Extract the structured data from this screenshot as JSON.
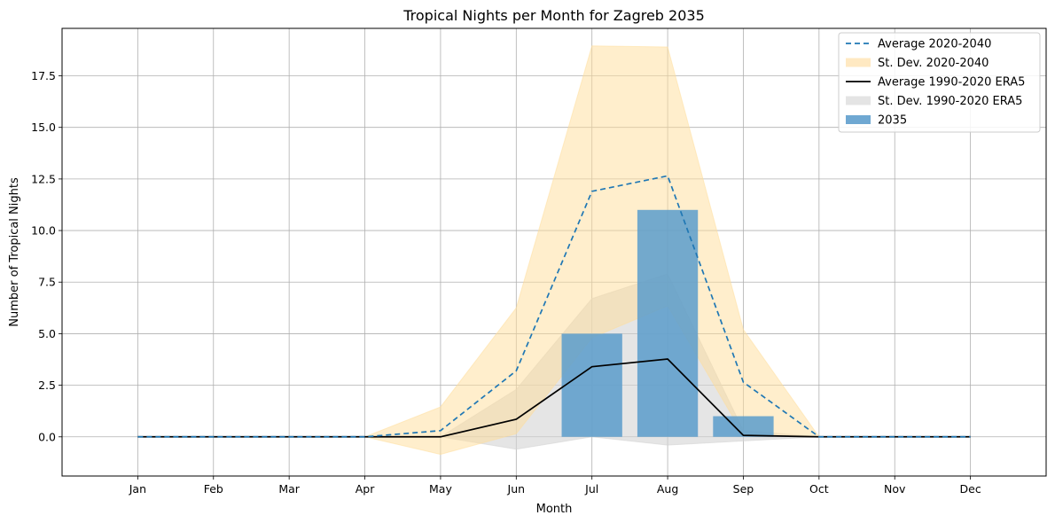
{
  "chart_data": {
    "type": "line",
    "title": "Tropical Nights per Month for Zagreb 2035",
    "xlabel": "Month",
    "ylabel": "Number of Tropical Nights",
    "categories": [
      "Jan",
      "Feb",
      "Mar",
      "Apr",
      "May",
      "Jun",
      "Jul",
      "Aug",
      "Sep",
      "Oct",
      "Nov",
      "Dec"
    ],
    "xlim": [
      -1.0,
      12.0
    ],
    "ylim": [
      -1.9,
      19.8
    ],
    "yticks": [
      0.0,
      2.5,
      5.0,
      7.5,
      10.0,
      12.5,
      15.0,
      17.5
    ],
    "ytick_labels": [
      "0.0",
      "2.5",
      "5.0",
      "7.5",
      "10.0",
      "12.5",
      "15.0",
      "17.5"
    ],
    "grid": true,
    "legend_position": "top-right",
    "series": [
      {
        "name": "St. Dev. 1990-2020 ERA5",
        "kind": "band",
        "color": "#d3d3d3",
        "opacity": 0.6,
        "lower": [
          0,
          0,
          0,
          0,
          0,
          -0.6,
          0,
          -0.4,
          -0.2,
          0,
          0,
          0
        ],
        "upper": [
          0,
          0,
          0,
          0,
          0,
          2.3,
          6.7,
          7.9,
          0.3,
          0,
          0,
          0
        ]
      },
      {
        "name": "St. Dev. 2020-2040",
        "kind": "band",
        "color": "#ffdd99",
        "opacity": 0.5,
        "lower": [
          0,
          0,
          0,
          0,
          -0.85,
          0.15,
          4.8,
          6.35,
          0.1,
          0,
          0,
          0
        ],
        "upper": [
          0,
          0,
          0,
          0,
          1.45,
          6.25,
          18.95,
          18.9,
          5.2,
          0,
          0,
          0
        ]
      },
      {
        "name": "2035",
        "kind": "bar",
        "color": "#5b9ccb",
        "opacity": 0.85,
        "values": [
          0,
          0,
          0,
          0,
          0,
          0,
          5,
          11,
          1,
          0,
          0,
          0
        ]
      },
      {
        "name": "Average 1990-2020 ERA5",
        "kind": "line",
        "color": "#000000",
        "dash": "",
        "values": [
          0,
          0,
          0,
          0,
          0,
          0.85,
          3.4,
          3.77,
          0.07,
          0,
          0,
          0
        ]
      },
      {
        "name": "Average 2020-2040",
        "kind": "line",
        "color": "#1f77b4",
        "dash": "6,4",
        "values": [
          0,
          0,
          0,
          0,
          0.3,
          3.2,
          11.9,
          12.65,
          2.65,
          0,
          0,
          0
        ]
      }
    ],
    "legend": [
      {
        "label": "Average 2020-2040",
        "swatch": "dashed-line",
        "color": "#1f77b4"
      },
      {
        "label": "St. Dev. 2020-2040",
        "swatch": "patch",
        "color": "#ffe9c2"
      },
      {
        "label": "Average 1990-2020 ERA5",
        "swatch": "line",
        "color": "#000000"
      },
      {
        "label": "St. Dev. 1990-2020 ERA5",
        "swatch": "patch",
        "color": "#e4e4e4"
      },
      {
        "label": "2035",
        "swatch": "patch",
        "color": "#6fa8d2"
      }
    ]
  }
}
